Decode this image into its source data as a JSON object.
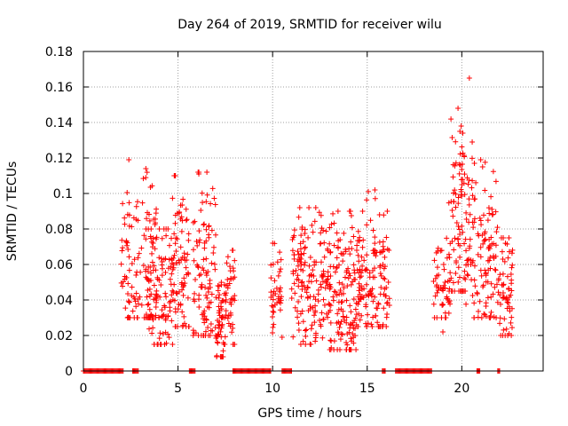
{
  "chart_data": {
    "type": "scatter",
    "title": "Day 264 of 2019, SRMTID for receiver wilu",
    "xlabel": "GPS time / hours",
    "ylabel": "SRMTID / TECUs",
    "xlim": [
      0,
      24.3
    ],
    "ylim": [
      0,
      0.18
    ],
    "grid": true,
    "x_ticks": [
      0,
      5,
      10,
      15,
      20
    ],
    "y_ticks": [
      0,
      0.02,
      0.04,
      0.06,
      0.08,
      0.1,
      0.12,
      0.14,
      0.16,
      0.18
    ],
    "x_tick_labels": [
      "0",
      "5",
      "10",
      "15",
      "20"
    ],
    "y_tick_labels": [
      "0",
      "0.02",
      "0.04",
      "0.06",
      "0.08",
      "0.1",
      "0.12",
      "0.14",
      "0.16",
      "0.18"
    ],
    "series": [
      {
        "name": "SRMTID",
        "marker": "plus",
        "color": "#ff0000",
        "clusters": [
          {
            "x_range": [
              2.0,
              4.0
            ],
            "y_min": 0.03,
            "y_max": 0.12,
            "center": 0.06,
            "count": 120
          },
          {
            "x_range": [
              3.3,
              4.8
            ],
            "y_min": 0.015,
            "y_max": 0.08,
            "center": 0.045,
            "count": 100
          },
          {
            "x_range": [
              4.6,
              5.6
            ],
            "y_min": 0.025,
            "y_max": 0.11,
            "center": 0.06,
            "count": 80
          },
          {
            "x_range": [
              5.8,
              7.0
            ],
            "y_min": 0.02,
            "y_max": 0.112,
            "center": 0.055,
            "count": 100
          },
          {
            "x_range": [
              7.0,
              7.4
            ],
            "y_min": 0.008,
            "y_max": 0.05,
            "center": 0.028,
            "count": 50
          },
          {
            "x_range": [
              7.4,
              8.0
            ],
            "y_min": 0.015,
            "y_max": 0.068,
            "center": 0.04,
            "count": 50
          },
          {
            "x_range": [
              9.9,
              10.5
            ],
            "y_min": 0.02,
            "y_max": 0.072,
            "center": 0.045,
            "count": 40
          },
          {
            "x_range": [
              11.0,
              13.0
            ],
            "y_min": 0.015,
            "y_max": 0.092,
            "center": 0.05,
            "count": 160
          },
          {
            "x_range": [
              13.0,
              14.5
            ],
            "y_min": 0.012,
            "y_max": 0.09,
            "center": 0.04,
            "count": 140
          },
          {
            "x_range": [
              14.5,
              16.2
            ],
            "y_min": 0.025,
            "y_max": 0.102,
            "center": 0.055,
            "count": 140
          },
          {
            "x_range": [
              18.5,
              19.4
            ],
            "y_min": 0.03,
            "y_max": 0.08,
            "center": 0.05,
            "count": 50
          },
          {
            "x_range": [
              19.3,
              20.2
            ],
            "y_min": 0.045,
            "y_max": 0.148,
            "center": 0.085,
            "count": 80
          },
          {
            "x_range": [
              20.2,
              21.9
            ],
            "y_min": 0.03,
            "y_max": 0.12,
            "center": 0.07,
            "count": 130
          },
          {
            "x_range": [
              21.9,
              22.7
            ],
            "y_min": 0.02,
            "y_max": 0.075,
            "center": 0.045,
            "count": 60
          }
        ],
        "outliers": [
          {
            "x": 20.4,
            "y": 0.165
          },
          {
            "x": 19.8,
            "y": 0.148
          },
          {
            "x": 19.9,
            "y": 0.135
          },
          {
            "x": 20.55,
            "y": 0.129
          },
          {
            "x": 2.4,
            "y": 0.119
          },
          {
            "x": 21.0,
            "y": 0.119
          },
          {
            "x": 3.3,
            "y": 0.114
          },
          {
            "x": 6.1,
            "y": 0.111
          },
          {
            "x": 4.8,
            "y": 0.11
          },
          {
            "x": 3.9,
            "y": 0.015
          },
          {
            "x": 10.5,
            "y": 0.019
          },
          {
            "x": 13.1,
            "y": 0.013
          },
          {
            "x": 19.0,
            "y": 0.022
          },
          {
            "x": 22.5,
            "y": 0.021
          }
        ],
        "baseline_zero_intervals": [
          [
            0.0,
            2.1
          ],
          [
            2.6,
            2.9
          ],
          [
            5.6,
            5.9
          ],
          [
            7.9,
            9.9
          ],
          [
            10.5,
            11.0
          ],
          [
            15.8,
            15.95
          ],
          [
            16.5,
            18.4
          ],
          [
            20.8,
            20.95
          ],
          [
            21.9,
            22.0
          ]
        ]
      }
    ]
  }
}
